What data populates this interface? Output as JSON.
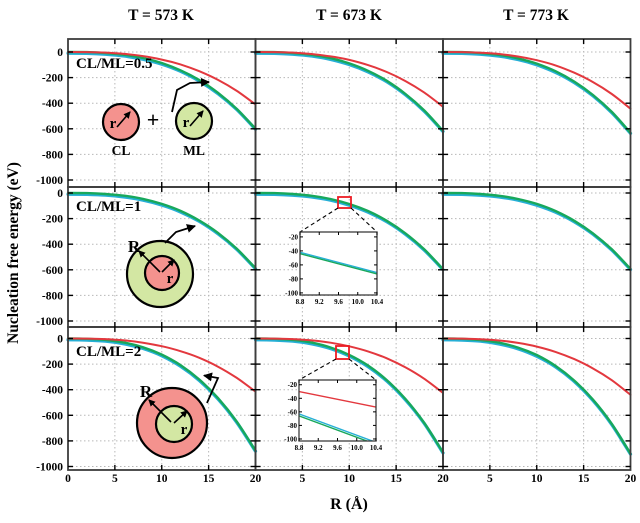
{
  "figure": {
    "ylabel": "Nucleation free energy (eV)",
    "xlabel": "R (Å)",
    "column_titles": [
      "T = 573 K",
      "T = 673 K",
      "T = 773 K"
    ],
    "row_labels": [
      "CL/ML=0.5",
      "CL/ML=1",
      "CL/ML=2"
    ],
    "colors": {
      "red_curve": "#e3383e",
      "green_curve": "#18a85b",
      "blue_curve": "#26afd6",
      "circle_red_fill": "#f4928e",
      "circle_green_fill": "#d3e7a3",
      "frame": "#3d3d3d",
      "grid": "#b8b8b8",
      "zoom_box": "#ec1c24"
    },
    "diagrams": {
      "row1": {
        "left_label": "CL",
        "right_label": "ML",
        "plus": "+",
        "left_radius": "r",
        "right_radius": "r"
      },
      "row2": {
        "outer_radius": "R",
        "inner_radius": "r"
      },
      "row3": {
        "outer_radius": "R",
        "inner_radius": "r"
      }
    }
  },
  "chart_data": {
    "type": "line",
    "title": "Nucleation free energy vs R for CL/ML ratios 0.5, 1, 2 at T = 573, 673, 773 K",
    "xlabel": "R (Å)",
    "ylabel": "Nucleation free energy (eV)",
    "xlim": [
      0,
      20
    ],
    "ylim": [
      -1050,
      100
    ],
    "grid": true,
    "x_ticks": [
      0,
      5,
      10,
      15,
      20
    ],
    "y_ticks": [
      0,
      -200,
      -400,
      -600,
      -800,
      -1000
    ],
    "y_ticklabels": [
      "0",
      "-200",
      "-400",
      "-600",
      "-800",
      "-1000"
    ],
    "x_ticklabels_by_col": [
      [
        "0",
        "5",
        "10",
        "15",
        "20"
      ],
      [
        "5",
        "10",
        "15",
        "20"
      ],
      [
        "5",
        "10",
        "15",
        "20"
      ]
    ],
    "x": [
      0,
      2,
      4,
      6,
      8,
      10,
      12,
      14,
      16,
      18,
      20
    ],
    "panels": [
      {
        "row": 0,
        "col": 0,
        "temperature": "T = 573 K",
        "ratio": "CL/ML=0.5",
        "series": [
          {
            "name": "blue",
            "values": [
              0,
              -1,
              -8,
              -22,
              -47,
              -85,
              -141,
              -217,
              -316,
              -440,
              -594
            ]
          },
          {
            "name": "green",
            "values": [
              0,
              -1,
              -8,
              -22,
              -47,
              -86,
              -143,
              -219,
              -319,
              -445,
              -600
            ]
          },
          {
            "name": "red",
            "values": [
              0,
              -1,
              -5,
              -15,
              -32,
              -59,
              -97,
              -150,
              -218,
              -304,
              -410
            ]
          }
        ]
      },
      {
        "row": 0,
        "col": 1,
        "temperature": "T = 673 K",
        "ratio": "CL/ML=0.5",
        "series": [
          {
            "name": "blue",
            "values": [
              0,
              -1,
              -8,
              -22,
              -48,
              -88,
              -145,
              -223,
              -325,
              -453,
              -611
            ]
          },
          {
            "name": "green",
            "values": [
              0,
              -1,
              -8,
              -22,
              -48,
              -89,
              -147,
              -225,
              -328,
              -457,
              -617
            ]
          },
          {
            "name": "red",
            "values": [
              0,
              -1,
              -5,
              -16,
              -34,
              -62,
              -102,
              -156,
              -227,
              -317,
              -428
            ]
          }
        ]
      },
      {
        "row": 0,
        "col": 2,
        "temperature": "T = 773 K",
        "ratio": "CL/ML=0.5",
        "series": [
          {
            "name": "blue",
            "values": [
              0,
              -1,
              -8,
              -23,
              -49,
              -90,
              -149,
              -229,
              -333,
              -464,
              -626
            ]
          },
          {
            "name": "green",
            "values": [
              0,
              -1,
              -8,
              -23,
              -50,
              -91,
              -150,
              -231,
              -336,
              -468,
              -632
            ]
          },
          {
            "name": "red",
            "values": [
              0,
              -1,
              -6,
              -16,
              -35,
              -64,
              -105,
              -162,
              -235,
              -328,
              -443
            ]
          }
        ]
      },
      {
        "row": 1,
        "col": 0,
        "temperature": "T = 573 K",
        "ratio": "CL/ML=1",
        "series": [
          {
            "name": "blue",
            "values": [
              0,
              -1,
              -7,
              -21,
              -46,
              -84,
              -138,
              -212,
              -309,
              -431,
              -582
            ]
          },
          {
            "name": "green",
            "values": [
              0,
              -1,
              -8,
              -21,
              -46,
              -85,
              -140,
              -215,
              -312,
              -436,
              -588
            ]
          }
        ]
      },
      {
        "row": 1,
        "col": 1,
        "temperature": "T = 673 K",
        "ratio": "CL/ML=1",
        "series": [
          {
            "name": "blue",
            "values": [
              0,
              -1,
              -8,
              -21,
              -46,
              -85,
              -140,
              -215,
              -313,
              -437,
              -589
            ]
          },
          {
            "name": "green",
            "values": [
              0,
              -1,
              -8,
              -22,
              -47,
              -86,
              -141,
              -217,
              -316,
              -441,
              -595
            ]
          }
        ]
      },
      {
        "row": 1,
        "col": 2,
        "temperature": "T = 773 K",
        "ratio": "CL/ML=1",
        "series": [
          {
            "name": "blue",
            "values": [
              0,
              -1,
              -8,
              -21,
              -46,
              -85,
              -140,
              -215,
              -312,
              -436,
              -588
            ]
          },
          {
            "name": "green",
            "values": [
              0,
              -1,
              -8,
              -22,
              -47,
              -85,
              -141,
              -217,
              -316,
              -440,
              -594
            ]
          }
        ]
      },
      {
        "row": 2,
        "col": 0,
        "temperature": "T = 573 K",
        "ratio": "CL/ML=2",
        "series": [
          {
            "name": "blue",
            "values": [
              0,
              -2,
              -11,
              -32,
              -68,
              -125,
              -207,
              -318,
              -463,
              -646,
              -871
            ]
          },
          {
            "name": "green",
            "values": [
              0,
              -2,
              -11,
              -32,
              -69,
              -126,
              -208,
              -320,
              -466,
              -650,
              -877
            ]
          },
          {
            "name": "red",
            "values": [
              0,
              -1,
              -5,
              -15,
              -33,
              -60,
              -99,
              -151,
              -220,
              -308,
              -415
            ]
          }
        ]
      },
      {
        "row": 2,
        "col": 1,
        "temperature": "T = 673 K",
        "ratio": "CL/ML=2",
        "series": [
          {
            "name": "blue",
            "values": [
              0,
              -2,
              -11,
              -32,
              -69,
              -127,
              -210,
              -323,
              -470,
              -655,
              -884
            ]
          },
          {
            "name": "green",
            "values": [
              0,
              -2,
              -11,
              -32,
              -70,
              -128,
              -211,
              -325,
              -473,
              -660,
              -890
            ]
          },
          {
            "name": "red",
            "values": [
              0,
              -1,
              -5,
              -15,
              -33,
              -61,
              -101,
              -155,
              -226,
              -315,
              -425
            ]
          }
        ]
      },
      {
        "row": 2,
        "col": 2,
        "temperature": "T = 773 K",
        "ratio": "CL/ML=2",
        "series": [
          {
            "name": "blue",
            "values": [
              0,
              -2,
              -11,
              -33,
              -70,
              -129,
              -212,
              -326,
              -475,
              -663,
              -894
            ]
          },
          {
            "name": "green",
            "values": [
              0,
              -2,
              -12,
              -33,
              -71,
              -129,
              -214,
              -329,
              -478,
              -667,
              -900
            ]
          },
          {
            "name": "red",
            "values": [
              0,
              -1,
              -6,
              -16,
              -34,
              -63,
              -105,
              -161,
              -234,
              -326,
              -440
            ]
          }
        ]
      }
    ],
    "insets": [
      {
        "panel_row": 1,
        "panel_col": 1,
        "xlim": [
          8.8,
          10.4
        ],
        "ylim": [
          -103,
          -13
        ],
        "x_ticklabels": [
          "8.8",
          "9.2",
          "9.6",
          "10.0",
          "10.4"
        ],
        "y_ticklabels": [
          "-20",
          "-40",
          "-60",
          "-80",
          "-100"
        ],
        "x_ticks": [
          8.8,
          9.2,
          9.6,
          10.0,
          10.4
        ],
        "y_ticks": [
          -20,
          -40,
          -60,
          -80,
          -100
        ],
        "lines": [
          {
            "name": "blue",
            "points": [
              [
                8.8,
                -42
              ],
              [
                10.4,
                -71
              ]
            ]
          },
          {
            "name": "green",
            "points": [
              [
                8.8,
                -44
              ],
              [
                10.4,
                -73
              ]
            ]
          }
        ]
      },
      {
        "panel_row": 2,
        "panel_col": 1,
        "xlim": [
          8.8,
          10.4
        ],
        "ylim": [
          -103,
          -13
        ],
        "x_ticklabels": [
          "8.8",
          "9.2",
          "9.6",
          "10.0",
          "10.4"
        ],
        "y_ticklabels": [
          "-20",
          "-40",
          "-60",
          "-80",
          "-100"
        ],
        "x_ticks": [
          8.8,
          9.2,
          9.6,
          10.0,
          10.4
        ],
        "y_ticks": [
          -20,
          -40,
          -60,
          -80,
          -100
        ],
        "lines": [
          {
            "name": "red",
            "points": [
              [
                8.8,
                -30
              ],
              [
                10.4,
                -53
              ]
            ]
          },
          {
            "name": "blue",
            "points": [
              [
                8.8,
                -63
              ],
              [
                10.4,
                -105
              ]
            ]
          },
          {
            "name": "green",
            "points": [
              [
                8.8,
                -66
              ],
              [
                10.4,
                -108
              ]
            ]
          }
        ]
      }
    ]
  }
}
